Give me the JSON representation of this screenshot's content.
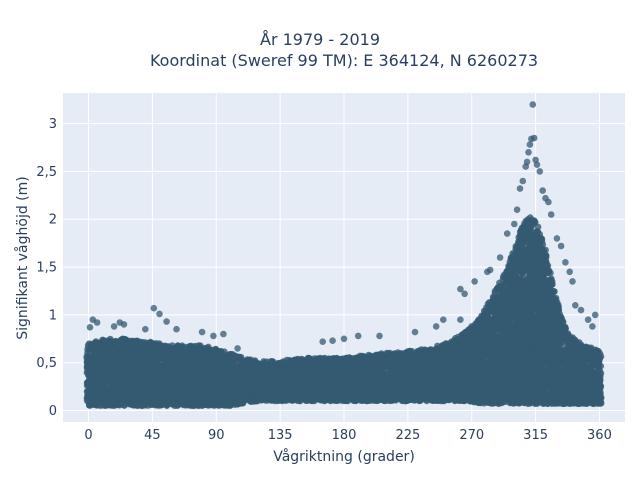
{
  "chart_data": {
    "type": "scatter",
    "title_lines": [
      "År 1979 - 2019",
      "Koordinat (Sweref 99 TM): E 364124, N 6260273"
    ],
    "xlabel": "Vågriktning (grader)",
    "ylabel": "Signifikant våghöjd (m)",
    "xlim": [
      -18,
      378
    ],
    "ylim": [
      -0.12,
      3.32
    ],
    "xticks": [
      0,
      45,
      90,
      135,
      180,
      225,
      270,
      315,
      360
    ],
    "xtick_labels": [
      "0",
      "45",
      "90",
      "135",
      "180",
      "225",
      "270",
      "315",
      "360"
    ],
    "yticks": [
      0,
      0.5,
      1,
      1.5,
      2,
      2.5,
      3
    ],
    "ytick_labels": [
      "0",
      "0,5",
      "1",
      "1,5",
      "2",
      "2,5",
      "3"
    ],
    "grid": true,
    "legend": false,
    "band_stats": {
      "x": [
        0,
        10,
        20,
        30,
        40,
        45,
        50,
        60,
        70,
        80,
        90,
        100,
        110,
        120,
        135,
        150,
        165,
        180,
        195,
        210,
        225,
        240,
        255,
        265,
        275,
        285,
        295,
        305,
        310,
        315,
        320,
        325,
        330,
        335,
        340,
        345,
        350,
        355,
        360
      ],
      "y_min": [
        0.05,
        0.05,
        0.05,
        0.05,
        0.05,
        0.05,
        0.05,
        0.05,
        0.05,
        0.05,
        0.05,
        0.05,
        0.08,
        0.1,
        0.1,
        0.1,
        0.1,
        0.1,
        0.1,
        0.1,
        0.1,
        0.1,
        0.1,
        0.1,
        0.08,
        0.07,
        0.07,
        0.07,
        0.07,
        0.07,
        0.07,
        0.07,
        0.07,
        0.07,
        0.07,
        0.07,
        0.07,
        0.07,
        0.07
      ],
      "y_dense_max": [
        0.7,
        0.75,
        0.75,
        0.75,
        0.72,
        0.72,
        0.7,
        0.68,
        0.68,
        0.68,
        0.65,
        0.6,
        0.55,
        0.52,
        0.52,
        0.55,
        0.55,
        0.55,
        0.58,
        0.6,
        0.62,
        0.65,
        0.72,
        0.82,
        0.95,
        1.2,
        1.5,
        1.9,
        2.05,
        2.0,
        1.8,
        1.45,
        1.15,
        0.9,
        0.78,
        0.72,
        0.68,
        0.65,
        0.62
      ]
    },
    "outliers": [
      {
        "x": 3,
        "y": 0.95
      },
      {
        "x": 6,
        "y": 0.92
      },
      {
        "x": 1,
        "y": 0.87
      },
      {
        "x": 22,
        "y": 0.92
      },
      {
        "x": 25,
        "y": 0.9
      },
      {
        "x": 18,
        "y": 0.88
      },
      {
        "x": 40,
        "y": 0.85
      },
      {
        "x": 46,
        "y": 1.07
      },
      {
        "x": 50,
        "y": 1.01
      },
      {
        "x": 55,
        "y": 0.93
      },
      {
        "x": 62,
        "y": 0.85
      },
      {
        "x": 80,
        "y": 0.82
      },
      {
        "x": 88,
        "y": 0.78
      },
      {
        "x": 95,
        "y": 0.8
      },
      {
        "x": 105,
        "y": 0.65
      },
      {
        "x": 165,
        "y": 0.72
      },
      {
        "x": 172,
        "y": 0.73
      },
      {
        "x": 180,
        "y": 0.75
      },
      {
        "x": 190,
        "y": 0.78
      },
      {
        "x": 205,
        "y": 0.78
      },
      {
        "x": 230,
        "y": 0.82
      },
      {
        "x": 245,
        "y": 0.88
      },
      {
        "x": 250,
        "y": 0.95
      },
      {
        "x": 262,
        "y": 0.95
      },
      {
        "x": 262,
        "y": 1.27
      },
      {
        "x": 265,
        "y": 1.22
      },
      {
        "x": 272,
        "y": 1.35
      },
      {
        "x": 281,
        "y": 1.45
      },
      {
        "x": 283,
        "y": 1.47
      },
      {
        "x": 290,
        "y": 1.6
      },
      {
        "x": 295,
        "y": 1.85
      },
      {
        "x": 300,
        "y": 1.95
      },
      {
        "x": 302,
        "y": 2.1
      },
      {
        "x": 304,
        "y": 2.32
      },
      {
        "x": 306,
        "y": 2.4
      },
      {
        "x": 308,
        "y": 2.55
      },
      {
        "x": 309,
        "y": 2.6
      },
      {
        "x": 310,
        "y": 2.7
      },
      {
        "x": 311,
        "y": 2.78
      },
      {
        "x": 312,
        "y": 2.84
      },
      {
        "x": 313,
        "y": 3.2
      },
      {
        "x": 314,
        "y": 2.85
      },
      {
        "x": 315,
        "y": 2.62
      },
      {
        "x": 316,
        "y": 2.57
      },
      {
        "x": 318,
        "y": 2.5
      },
      {
        "x": 320,
        "y": 2.3
      },
      {
        "x": 322,
        "y": 2.22
      },
      {
        "x": 324,
        "y": 2.18
      },
      {
        "x": 326,
        "y": 2.05
      },
      {
        "x": 330,
        "y": 1.8
      },
      {
        "x": 333,
        "y": 1.72
      },
      {
        "x": 336,
        "y": 1.55
      },
      {
        "x": 339,
        "y": 1.45
      },
      {
        "x": 341,
        "y": 1.35
      },
      {
        "x": 343,
        "y": 1.1
      },
      {
        "x": 347,
        "y": 1.05
      },
      {
        "x": 352,
        "y": 0.95
      },
      {
        "x": 357,
        "y": 1.0
      },
      {
        "x": 355,
        "y": 0.88
      }
    ]
  },
  "colors": {
    "plot_background": "#e5ecf6",
    "grid": "#ffffff",
    "marker": "#355a72",
    "text": "#2a3f5f"
  }
}
